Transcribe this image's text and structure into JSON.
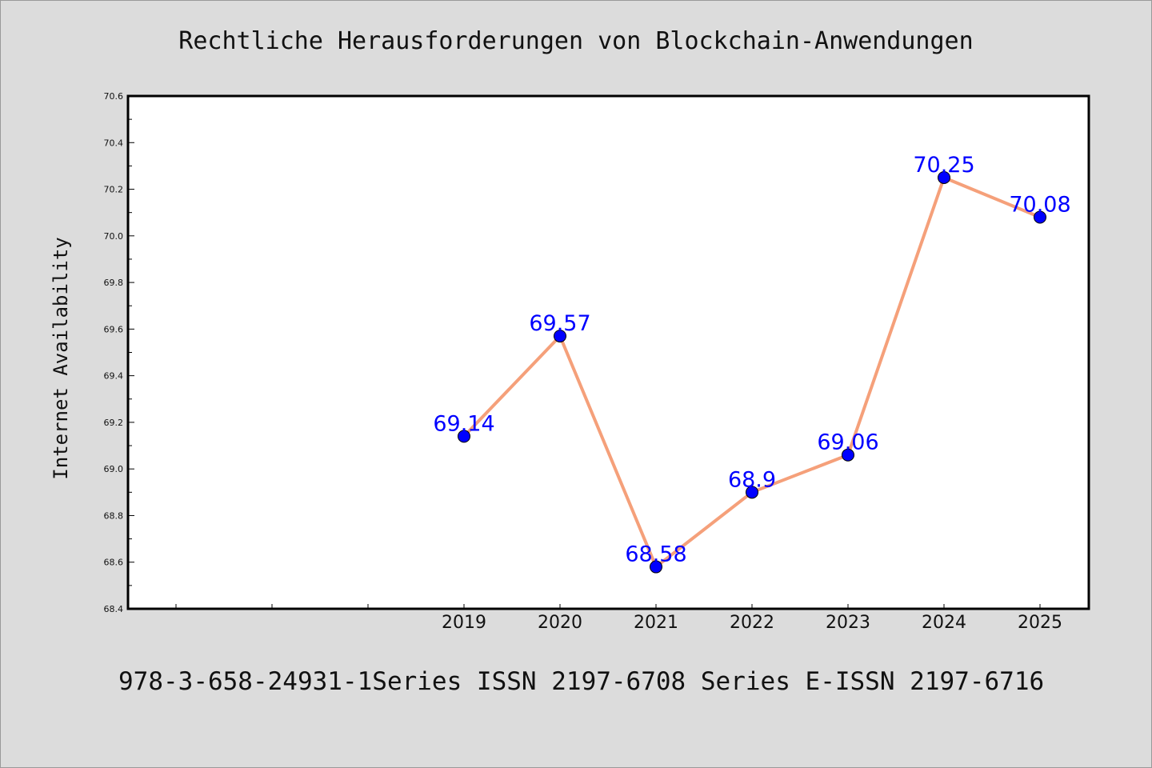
{
  "chart_data": {
    "type": "line",
    "title": "Rechtliche Herausforderungen von Blockchain-Anwendungen",
    "xlabel": "",
    "ylabel": "Internet Availability",
    "categories": [
      "2019",
      "2020",
      "2021",
      "2022",
      "2023",
      "2024",
      "2025"
    ],
    "series": [
      {
        "values": [
          69.14,
          69.57,
          68.58,
          68.9,
          69.06,
          70.25,
          70.08
        ],
        "labels": [
          "69.14",
          "69.57",
          "68.58",
          "68.9",
          "69.06",
          "70.25",
          "70.08"
        ],
        "line_color": "#f5a07a",
        "marker_color": "#0000ff"
      }
    ],
    "ylim": [
      68.4,
      70.6
    ],
    "y_ticks": [
      "68.4",
      "68.6",
      "68.8",
      "69.0",
      "69.2",
      "69.4",
      "69.6",
      "69.8",
      "70.0",
      "70.2",
      "70.4",
      "70.6"
    ],
    "x_leading_empty_slots": 3,
    "grid": false,
    "legend": "none"
  },
  "footer": "978-3-658-24931-1Series ISSN 2197-6708 Series E-ISSN 2197-6716",
  "colors": {
    "background": "#dcdcdc",
    "plot_background": "#ffffff",
    "axis": "#000000"
  }
}
